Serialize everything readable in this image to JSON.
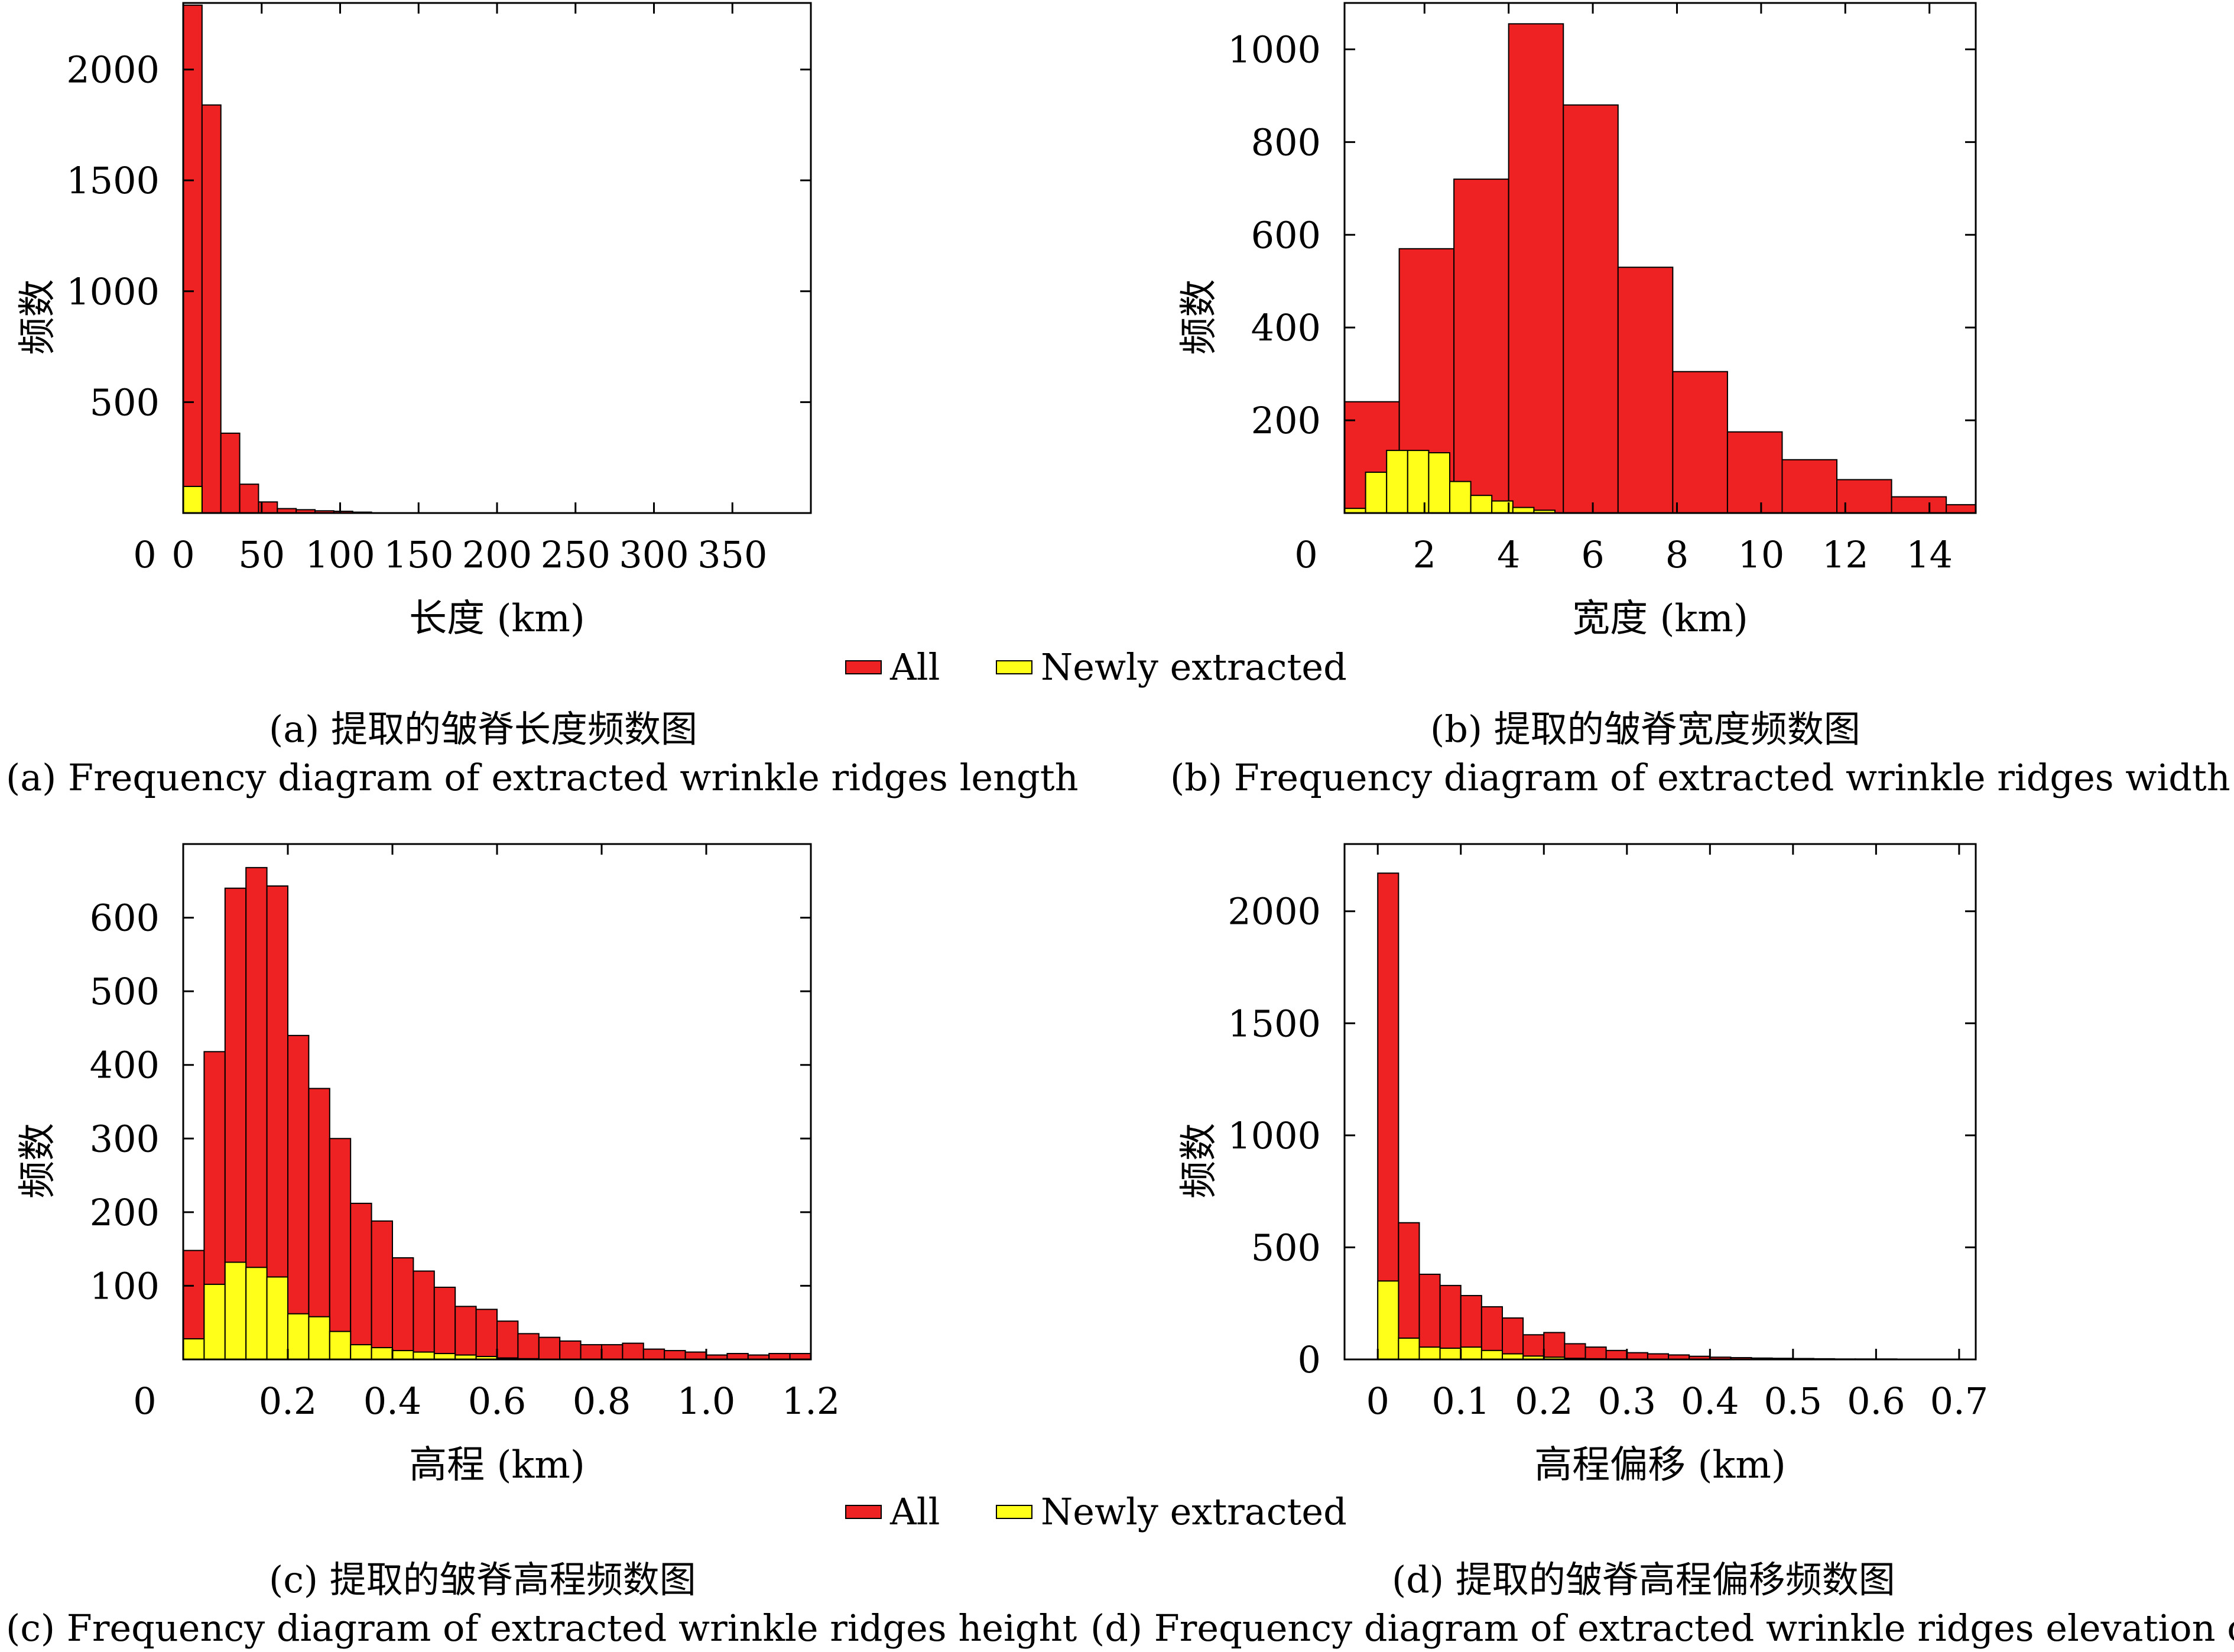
{
  "colors": {
    "all": "#ee2222",
    "newly": "#ffff1a",
    "bar_stroke": "#000000"
  },
  "legend_top": {
    "all_label": "All",
    "newly_label": "Newly extracted"
  },
  "legend_bottom": {
    "all_label": "All",
    "newly_label": "Newly extracted"
  },
  "captions": {
    "a_cn": "(a) 提取的皱脊长度频数图",
    "a_en": "(a) Frequency diagram of extracted wrinkle ridges length",
    "b_cn": "(b) 提取的皱脊宽度频数图",
    "b_en": "(b) Frequency diagram of extracted wrinkle ridges width",
    "c_cn": "(c) 提取的皱脊高程频数图",
    "c_en": "(c) Frequency diagram of extracted wrinkle ridges height",
    "d_cn": "(d) 提取的皱脊高程偏移频数图",
    "d_en": "(d) Frequency diagram of extracted wrinkle ridges elevation offset"
  },
  "chart_data": [
    {
      "id": "a",
      "type": "bar",
      "xlabel": "长度 (km)",
      "ylabel": "频数",
      "xlim": [
        0,
        400
      ],
      "ylim": [
        0,
        2300
      ],
      "xticks": [
        0,
        50,
        100,
        150,
        200,
        250,
        300,
        350
      ],
      "yticks": [
        0,
        500,
        1000,
        1500,
        2000
      ],
      "hide_y0": true,
      "x_origin_label": "0",
      "edges": [
        0,
        12,
        24,
        36,
        48,
        60,
        72,
        84,
        96,
        108,
        120
      ],
      "series": [
        {
          "key": "all",
          "name": "All",
          "values": [
            2290,
            1840,
            360,
            130,
            50,
            20,
            15,
            10,
            8,
            4
          ]
        },
        {
          "key": "newly",
          "name": "Newly extracted",
          "values": [
            120,
            0,
            0,
            0,
            0,
            0,
            0,
            0,
            0,
            0
          ]
        }
      ]
    },
    {
      "id": "b",
      "type": "bar",
      "xlabel": "宽度 (km)",
      "ylabel": "频数",
      "xlim": [
        0.1,
        15.1
      ],
      "ylim": [
        0,
        1100
      ],
      "xticks": [
        2,
        4,
        6,
        8,
        10,
        12,
        14
      ],
      "yticks": [
        200,
        400,
        600,
        800,
        1000
      ],
      "x_origin_label": "0",
      "all_edges": [
        0.1,
        1.4,
        2.7,
        4.0,
        5.3,
        6.6,
        7.9,
        9.2,
        10.5,
        11.8,
        13.1,
        14.4,
        15.1
      ],
      "all_values": [
        240,
        570,
        720,
        1055,
        880,
        530,
        305,
        175,
        115,
        72,
        35,
        18
      ],
      "newly_edges": [
        0.1,
        0.6,
        1.1,
        1.6,
        2.1,
        2.6,
        3.1,
        3.6,
        4.1,
        4.6,
        5.1
      ],
      "newly_values": [
        10,
        88,
        135,
        135,
        130,
        68,
        38,
        26,
        12,
        6
      ],
      "series": [
        {
          "key": "all",
          "name": "All"
        },
        {
          "key": "newly",
          "name": "Newly extracted"
        }
      ]
    },
    {
      "id": "c",
      "type": "bar",
      "xlabel": "高程 (km)",
      "ylabel": "频数",
      "xlim": [
        0,
        1.2
      ],
      "ylim": [
        0,
        700
      ],
      "xticks": [
        0.2,
        0.4,
        0.6,
        0.8,
        1.0,
        1.2
      ],
      "xtick_labels": [
        "0.2",
        "0.4",
        "0.6",
        "0.8",
        "1.0",
        "1.2"
      ],
      "yticks": [
        100,
        200,
        300,
        400,
        500,
        600
      ],
      "x_origin_label": "0",
      "bin_width": 0.04,
      "series": [
        {
          "key": "all",
          "name": "All",
          "values": [
            148,
            418,
            640,
            668,
            643,
            440,
            368,
            300,
            212,
            188,
            138,
            120,
            98,
            72,
            68,
            52,
            35,
            30,
            25,
            20,
            20,
            22,
            14,
            12,
            10,
            6,
            8,
            6,
            8,
            8
          ]
        },
        {
          "key": "newly",
          "name": "Newly extracted",
          "values": [
            28,
            102,
            132,
            125,
            112,
            62,
            58,
            38,
            20,
            16,
            12,
            10,
            8,
            6,
            4,
            2,
            1,
            0,
            0,
            0,
            0,
            0,
            0,
            0,
            0,
            0,
            0,
            0,
            0,
            0
          ]
        }
      ]
    },
    {
      "id": "d",
      "type": "bar",
      "xlabel": "高程偏移 (km)",
      "ylabel": "频数",
      "xlim": [
        -0.04,
        0.72
      ],
      "ylim": [
        0,
        2300
      ],
      "xticks": [
        0,
        0.1,
        0.2,
        0.3,
        0.4,
        0.5,
        0.6,
        0.7
      ],
      "xtick_labels": [
        "0",
        "0.1",
        "0.2",
        "0.3",
        "0.4",
        "0.5",
        "0.6",
        "0.7"
      ],
      "yticks": [
        0,
        500,
        1000,
        1500,
        2000
      ],
      "bin_start": 0,
      "bin_width": 0.025,
      "series": [
        {
          "key": "all",
          "name": "All",
          "values": [
            2170,
            610,
            380,
            330,
            285,
            235,
            185,
            110,
            120,
            70,
            55,
            40,
            30,
            25,
            20,
            14,
            10,
            8,
            6,
            5,
            4,
            3,
            2,
            2,
            2,
            1,
            1,
            1
          ]
        },
        {
          "key": "newly",
          "name": "Newly extracted",
          "values": [
            350,
            95,
            55,
            50,
            55,
            40,
            25,
            15,
            10,
            5,
            3,
            2,
            1,
            1,
            0,
            0,
            0,
            0,
            0,
            0,
            0,
            0,
            0,
            0,
            0,
            0,
            0,
            0
          ]
        }
      ]
    }
  ]
}
